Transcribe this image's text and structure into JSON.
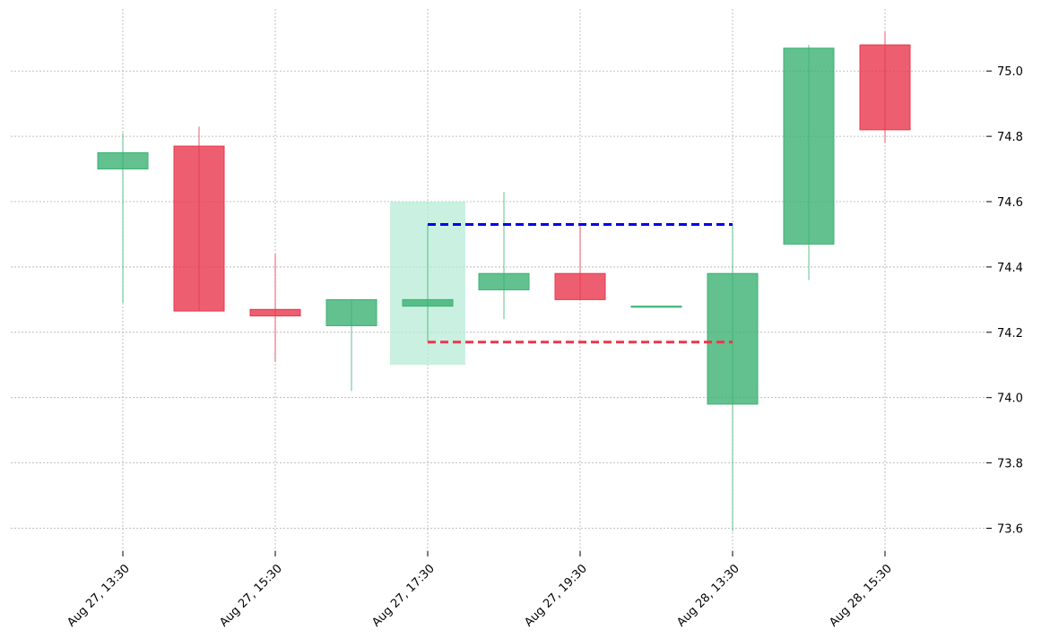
{
  "chart_data": {
    "type": "candlestick",
    "title": "",
    "xlabel": "",
    "ylabel": "",
    "ylim": [
      73.53,
      75.19
    ],
    "yticks": [
      73.6,
      73.8,
      74.0,
      74.2,
      74.4,
      74.6,
      74.8,
      75.0
    ],
    "ytick_labels": [
      "73.6",
      "73.8",
      "74.0",
      "74.2",
      "74.4",
      "74.6",
      "74.8",
      "75.0"
    ],
    "xtick_labels": [
      "Aug 27, 13:30",
      "Aug 27, 15:30",
      "Aug 27, 17:30",
      "Aug 27, 19:30",
      "Aug 28, 13:30",
      "Aug 28, 15:30"
    ],
    "grid": true,
    "colors": {
      "up": "#3bb273",
      "down": "#e8374c",
      "highlight": "#b7ebd6",
      "resistance": "#0000ee",
      "support": "#e8374c"
    },
    "candles": [
      {
        "open": 74.7,
        "high": 74.81,
        "low": 74.29,
        "close": 74.75
      },
      {
        "open": 74.77,
        "high": 74.83,
        "low": 74.265,
        "close": 74.265
      },
      {
        "open": 74.27,
        "high": 74.44,
        "low": 74.11,
        "close": 74.25
      },
      {
        "open": 74.22,
        "high": 74.3,
        "low": 74.02,
        "close": 74.3
      },
      {
        "open": 74.28,
        "high": 74.53,
        "low": 74.17,
        "close": 74.3
      },
      {
        "open": 74.33,
        "high": 74.63,
        "low": 74.24,
        "close": 74.38
      },
      {
        "open": 74.38,
        "high": 74.53,
        "low": 74.3,
        "close": 74.3
      },
      {
        "open": 74.28,
        "high": 74.28,
        "low": 74.28,
        "close": 74.28
      },
      {
        "open": 73.98,
        "high": 74.53,
        "low": 73.59,
        "close": 74.38
      },
      {
        "open": 74.47,
        "high": 75.08,
        "low": 74.36,
        "close": 75.07
      },
      {
        "open": 75.08,
        "high": 75.12,
        "low": 74.78,
        "close": 74.82
      }
    ],
    "highlight_zone": {
      "from_index": 4,
      "to_index": 4,
      "low": 74.1,
      "high": 74.6
    },
    "levels": [
      {
        "name": "resistance",
        "value": 74.53,
        "from_index": 4,
        "to_index": 8
      },
      {
        "name": "support",
        "value": 74.17,
        "from_index": 4,
        "to_index": 8
      }
    ]
  }
}
